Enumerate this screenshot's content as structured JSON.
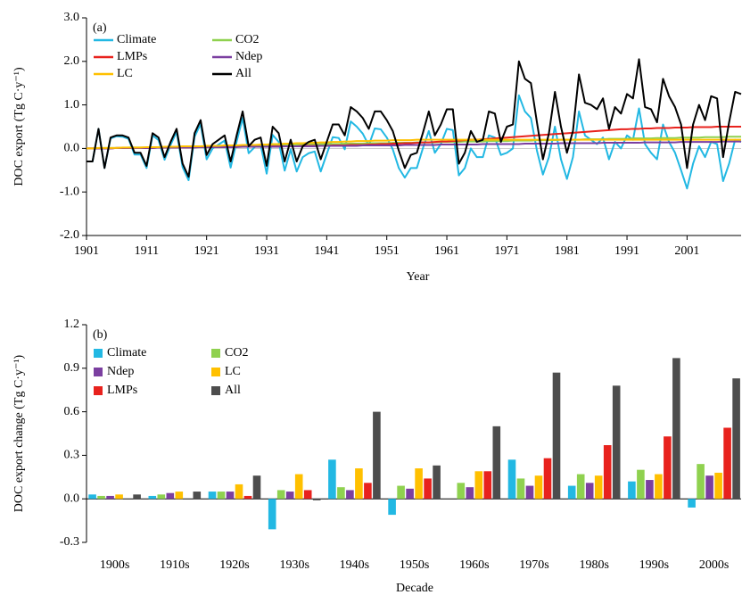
{
  "chart_data": [
    {
      "type": "line",
      "panel_label": "(a)",
      "x_label": "Year",
      "y_label": "DOC export (Tg C·y⁻¹)",
      "x": [
        1901,
        1902,
        1903,
        1904,
        1905,
        1906,
        1907,
        1908,
        1909,
        1910,
        1911,
        1912,
        1913,
        1914,
        1915,
        1916,
        1917,
        1918,
        1919,
        1920,
        1921,
        1922,
        1923,
        1924,
        1925,
        1926,
        1927,
        1928,
        1929,
        1930,
        1931,
        1932,
        1933,
        1934,
        1935,
        1936,
        1937,
        1938,
        1939,
        1940,
        1941,
        1942,
        1943,
        1944,
        1945,
        1946,
        1947,
        1948,
        1949,
        1950,
        1951,
        1952,
        1953,
        1954,
        1955,
        1956,
        1957,
        1958,
        1959,
        1960,
        1961,
        1962,
        1963,
        1964,
        1965,
        1966,
        1967,
        1968,
        1969,
        1970,
        1971,
        1972,
        1973,
        1974,
        1975,
        1976,
        1977,
        1978,
        1979,
        1980,
        1981,
        1982,
        1983,
        1984,
        1985,
        1986,
        1987,
        1988,
        1989,
        1990,
        1991,
        1992,
        1993,
        1994,
        1995,
        1996,
        1997,
        1998,
        1999,
        2000,
        2001,
        2002,
        2003,
        2004,
        2005,
        2006,
        2007,
        2008,
        2009,
        2010
      ],
      "xlim": [
        1901,
        2010
      ],
      "xticks": [
        1901,
        1911,
        1921,
        1931,
        1941,
        1951,
        1961,
        1971,
        1981,
        1991,
        2001
      ],
      "ylim": [
        -2,
        3
      ],
      "yticks": [
        {
          "value": -2,
          "label": "-2.0"
        },
        {
          "value": -1,
          "label": "-1.0"
        },
        {
          "value": 0,
          "label": "0.0"
        },
        {
          "value": 1,
          "label": "1.0"
        },
        {
          "value": 2,
          "label": "2.0"
        },
        {
          "value": 3,
          "label": "3.0"
        }
      ],
      "series": [
        {
          "name": "Climate",
          "color": "#22b8e3",
          "values": [
            -0.3,
            -0.3,
            0.45,
            -0.45,
            0.23,
            0.28,
            0.27,
            0.22,
            -0.14,
            -0.14,
            -0.45,
            0.3,
            0.19,
            -0.26,
            0.08,
            0.38,
            -0.43,
            -0.73,
            0.27,
            0.56,
            -0.25,
            0,
            0.09,
            0.18,
            -0.44,
            0.16,
            0.7,
            -0.11,
            0.03,
            0.08,
            -0.58,
            0.31,
            0.15,
            -0.51,
            -0.02,
            -0.53,
            -0.2,
            -0.11,
            -0.07,
            -0.53,
            -0.13,
            0.26,
            0.24,
            -0.02,
            0.62,
            0.5,
            0.34,
            0.07,
            0.46,
            0.44,
            0.25,
            -0.02,
            -0.45,
            -0.67,
            -0.45,
            -0.45,
            0,
            0.4,
            -0.1,
            0.1,
            0.45,
            0.42,
            -0.62,
            -0.45,
            0,
            -0.2,
            -0.2,
            0.3,
            0.25,
            -0.15,
            -0.1,
            0,
            1.22,
            0.85,
            0.7,
            -0.05,
            -0.6,
            -0.2,
            0.5,
            -0.25,
            -0.7,
            -0.2,
            0.85,
            0.3,
            0.2,
            0.1,
            0.25,
            -0.25,
            0.15,
            0,
            0.3,
            0.2,
            0.92,
            0.1,
            -0.1,
            -0.25,
            0.55,
            0.15,
            -0.1,
            -0.5,
            -0.92,
            -0.35,
            0.05,
            -0.2,
            0.15,
            0.1,
            -0.75,
            -0.35,
            0.2,
            0.15
          ]
        },
        {
          "name": "CO2",
          "color": "#8fd14f",
          "values": [
            0,
            0,
            0,
            0.01,
            0.01,
            0.01,
            0.01,
            0.02,
            0.02,
            0.02,
            0.02,
            0.03,
            0.03,
            0.03,
            0.03,
            0.04,
            0.04,
            0.04,
            0.04,
            0.05,
            0.05,
            0.05,
            0.05,
            0.06,
            0.06,
            0.06,
            0.06,
            0.07,
            0.07,
            0.07,
            0.07,
            0.08,
            0.08,
            0.08,
            0.08,
            0.09,
            0.09,
            0.09,
            0.09,
            0.1,
            0.1,
            0.1,
            0.1,
            0.11,
            0.11,
            0.11,
            0.11,
            0.12,
            0.12,
            0.12,
            0.12,
            0.13,
            0.13,
            0.13,
            0.13,
            0.14,
            0.14,
            0.14,
            0.14,
            0.15,
            0.15,
            0.15,
            0.15,
            0.16,
            0.16,
            0.16,
            0.16,
            0.17,
            0.17,
            0.17,
            0.17,
            0.18,
            0.18,
            0.18,
            0.18,
            0.19,
            0.19,
            0.19,
            0.19,
            0.2,
            0.2,
            0.2,
            0.2,
            0.21,
            0.21,
            0.21,
            0.21,
            0.22,
            0.22,
            0.22,
            0.22,
            0.23,
            0.23,
            0.23,
            0.23,
            0.24,
            0.24,
            0.24,
            0.24,
            0.25,
            0.25,
            0.25,
            0.25,
            0.26,
            0.26,
            0.26,
            0.26,
            0.27,
            0.27,
            0.27
          ]
        },
        {
          "name": "LMPs",
          "color": "#e8221d",
          "values": [
            0,
            0,
            0,
            0,
            0,
            0.01,
            0.01,
            0.01,
            0.01,
            0.01,
            0.01,
            0.01,
            0.02,
            0.02,
            0.02,
            0.02,
            0.02,
            0.02,
            0.03,
            0.03,
            0.03,
            0.03,
            0.03,
            0.03,
            0.03,
            0.04,
            0.04,
            0.04,
            0.04,
            0.04,
            0.04,
            0.05,
            0.05,
            0.05,
            0.05,
            0.05,
            0.06,
            0.06,
            0.06,
            0.06,
            0.06,
            0.07,
            0.07,
            0.07,
            0.08,
            0.08,
            0.08,
            0.09,
            0.09,
            0.1,
            0.1,
            0.11,
            0.11,
            0.12,
            0.12,
            0.13,
            0.14,
            0.14,
            0.15,
            0.16,
            0.16,
            0.17,
            0.18,
            0.19,
            0.2,
            0.2,
            0.21,
            0.22,
            0.23,
            0.24,
            0.25,
            0.26,
            0.27,
            0.28,
            0.29,
            0.3,
            0.31,
            0.32,
            0.33,
            0.34,
            0.35,
            0.36,
            0.37,
            0.38,
            0.39,
            0.4,
            0.41,
            0.42,
            0.43,
            0.44,
            0.44,
            0.45,
            0.45,
            0.46,
            0.46,
            0.47,
            0.47,
            0.47,
            0.48,
            0.48,
            0.48,
            0.49,
            0.49,
            0.49,
            0.49,
            0.5,
            0.5,
            0.5,
            0.5,
            0.5
          ]
        },
        {
          "name": "Ndep",
          "color": "#7b3fa0",
          "values": [
            0,
            0,
            0,
            0,
            0,
            0.01,
            0.01,
            0.01,
            0.01,
            0.01,
            0.01,
            0.01,
            0.02,
            0.02,
            0.02,
            0.02,
            0.02,
            0.02,
            0.02,
            0.03,
            0.03,
            0.03,
            0.03,
            0.03,
            0.03,
            0.03,
            0.04,
            0.04,
            0.04,
            0.04,
            0.04,
            0.04,
            0.04,
            0.05,
            0.05,
            0.05,
            0.05,
            0.05,
            0.05,
            0.06,
            0.06,
            0.06,
            0.06,
            0.06,
            0.06,
            0.06,
            0.07,
            0.07,
            0.07,
            0.07,
            0.07,
            0.07,
            0.07,
            0.08,
            0.08,
            0.08,
            0.08,
            0.08,
            0.08,
            0.09,
            0.09,
            0.09,
            0.09,
            0.09,
            0.09,
            0.09,
            0.1,
            0.1,
            0.1,
            0.1,
            0.1,
            0.1,
            0.1,
            0.11,
            0.11,
            0.11,
            0.11,
            0.11,
            0.11,
            0.12,
            0.12,
            0.12,
            0.12,
            0.12,
            0.12,
            0.12,
            0.13,
            0.13,
            0.13,
            0.13,
            0.13,
            0.13,
            0.13,
            0.14,
            0.14,
            0.14,
            0.14,
            0.14,
            0.14,
            0.15,
            0.15,
            0.15,
            0.15,
            0.15,
            0.15,
            0.15,
            0.16,
            0.16,
            0.16,
            0.16
          ]
        },
        {
          "name": "LC",
          "color": "#ffc000",
          "values": [
            0,
            0,
            0.01,
            0.01,
            0.01,
            0.01,
            0.02,
            0.02,
            0.02,
            0.02,
            0.03,
            0.03,
            0.03,
            0.04,
            0.04,
            0.04,
            0.05,
            0.05,
            0.05,
            0.05,
            0.06,
            0.06,
            0.06,
            0.07,
            0.07,
            0.07,
            0.08,
            0.08,
            0.08,
            0.09,
            0.09,
            0.1,
            0.1,
            0.11,
            0.11,
            0.12,
            0.12,
            0.13,
            0.13,
            0.14,
            0.14,
            0.15,
            0.15,
            0.16,
            0.16,
            0.17,
            0.17,
            0.17,
            0.18,
            0.18,
            0.18,
            0.19,
            0.19,
            0.19,
            0.19,
            0.2,
            0.2,
            0.2,
            0.2,
            0.2,
            0.2,
            0.2,
            0.2,
            0.2,
            0.2,
            0.2,
            0.2,
            0.2,
            0.2,
            0.2,
            0.2,
            0.2,
            0.2,
            0.2,
            0.2,
            0.2,
            0.2,
            0.2,
            0.2,
            0.2,
            0.2,
            0.2,
            0.2,
            0.2,
            0.2,
            0.2,
            0.2,
            0.2,
            0.2,
            0.2,
            0.2,
            0.2,
            0.2,
            0.2,
            0.2,
            0.2,
            0.2,
            0.2,
            0.2,
            0.2,
            0.2,
            0.2,
            0.2,
            0.2,
            0.2,
            0.2,
            0.2,
            0.2,
            0.2,
            0.2
          ]
        },
        {
          "name": "All",
          "color": "#000000",
          "values": [
            -0.3,
            -0.3,
            0.45,
            -0.45,
            0.25,
            0.3,
            0.3,
            0.25,
            -0.1,
            -0.1,
            -0.4,
            0.35,
            0.25,
            -0.2,
            0.15,
            0.45,
            -0.35,
            -0.65,
            0.35,
            0.65,
            -0.15,
            0.1,
            0.2,
            0.3,
            -0.3,
            0.3,
            0.85,
            0.05,
            0.2,
            0.25,
            -0.4,
            0.5,
            0.35,
            -0.3,
            0.2,
            -0.3,
            0.05,
            0.15,
            0.2,
            -0.25,
            0.15,
            0.55,
            0.55,
            0.3,
            0.95,
            0.85,
            0.7,
            0.45,
            0.85,
            0.85,
            0.65,
            0.4,
            -0.05,
            -0.45,
            -0.15,
            -0.1,
            0.35,
            0.85,
            0.3,
            0.55,
            0.9,
            0.9,
            -0.35,
            -0.1,
            0.4,
            0.15,
            0.2,
            0.85,
            0.8,
            0.15,
            0.5,
            0.55,
            2.0,
            1.6,
            1.5,
            0.6,
            -0.25,
            0.35,
            1.3,
            0.5,
            -0.1,
            0.4,
            1.7,
            1.05,
            1.0,
            0.9,
            1.15,
            0.45,
            0.95,
            0.8,
            1.25,
            1.15,
            2.05,
            0.95,
            0.9,
            0.6,
            1.6,
            1.2,
            0.95,
            0.55,
            -0.45,
            0.55,
            1.0,
            0.65,
            1.2,
            1.15,
            -0.2,
            0.6,
            1.3,
            1.25
          ]
        }
      ]
    },
    {
      "type": "bar",
      "panel_label": "(b)",
      "x_label": "Decade",
      "y_label": "DOC export change (Tg C·y⁻¹)",
      "categories": [
        "1900s",
        "1910s",
        "1920s",
        "1930s",
        "1940s",
        "1950s",
        "1960s",
        "1970s",
        "1980s",
        "1990s",
        "2000s"
      ],
      "ylim": [
        -0.3,
        1.2
      ],
      "yticks": [
        -0.3,
        {
          "value": 0,
          "label": "0.0"
        },
        0.3,
        0.6,
        0.9,
        1.2
      ],
      "series": [
        {
          "name": "Climate",
          "color": "#22b8e3",
          "values": [
            0.03,
            0.02,
            0.05,
            -0.21,
            0.27,
            -0.11,
            0,
            0.27,
            0.09,
            0.12,
            -0.06
          ]
        },
        {
          "name": "CO2",
          "color": "#8fd14f",
          "values": [
            0.02,
            0.03,
            0.05,
            0.06,
            0.08,
            0.09,
            0.11,
            0.14,
            0.17,
            0.2,
            0.24
          ]
        },
        {
          "name": "Ndep",
          "color": "#7b3fa0",
          "values": [
            0.02,
            0.04,
            0.05,
            0.05,
            0.06,
            0.07,
            0.08,
            0.09,
            0.11,
            0.13,
            0.16
          ]
        },
        {
          "name": "LC",
          "color": "#ffc000",
          "values": [
            0.03,
            0.05,
            0.1,
            0.17,
            0.21,
            0.21,
            0.19,
            0.16,
            0.16,
            0.17,
            0.18
          ]
        },
        {
          "name": "LMPs",
          "color": "#e8221d",
          "values": [
            0,
            0,
            0.02,
            0.06,
            0.11,
            0.14,
            0.19,
            0.28,
            0.37,
            0.43,
            0.49
          ]
        },
        {
          "name": "All",
          "color": "#4d4d4d",
          "values": [
            0.03,
            0.05,
            0.16,
            -0.01,
            0.6,
            0.23,
            0.5,
            0.87,
            0.78,
            0.97,
            0.83
          ]
        }
      ]
    }
  ]
}
